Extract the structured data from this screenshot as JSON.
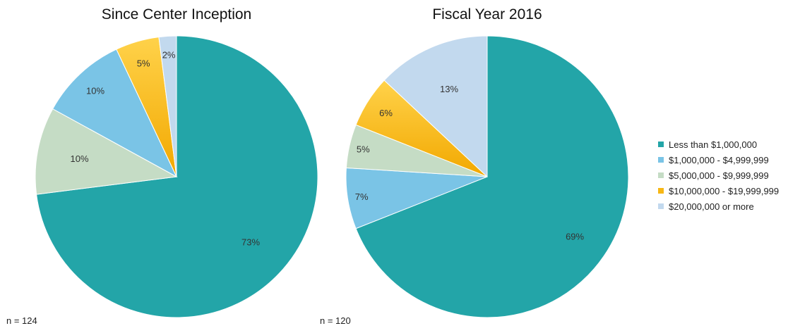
{
  "chart_data": [
    {
      "type": "pie",
      "title": "Since Center Inception",
      "note": "n = 124",
      "slices": [
        {
          "label": "Less than $1,000,000",
          "value": 73,
          "display": "73%"
        },
        {
          "label": "$5,000,000 - $9,999,999",
          "value": 10,
          "display": "10%"
        },
        {
          "label": "$1,000,000 - $4,999,999",
          "value": 10,
          "display": "10%"
        },
        {
          "label": "$10,000,000 - $19,999,999",
          "value": 5,
          "display": "5%"
        },
        {
          "label": "$20,000,000 or more",
          "value": 2,
          "display": "2%"
        }
      ]
    },
    {
      "type": "pie",
      "title": "Fiscal Year 2016",
      "note": "n = 120",
      "slices": [
        {
          "label": "Less than $1,000,000",
          "value": 69,
          "display": "69%"
        },
        {
          "label": "$1,000,000 - $4,999,999",
          "value": 7,
          "display": "7%"
        },
        {
          "label": "$5,000,000 - $9,999,999",
          "value": 5,
          "display": "5%"
        },
        {
          "label": "$10,000,000 - $19,999,999",
          "value": 6,
          "display": "6%"
        },
        {
          "label": "$20,000,000 or more",
          "value": 13,
          "display": "13%"
        }
      ]
    }
  ],
  "legend": [
    {
      "label": "Less than $1,000,000",
      "color": "#23A5A8"
    },
    {
      "label": "$1,000,000 - $4,999,999",
      "color": "#7AC4E6"
    },
    {
      "label": "$5,000,000 - $9,999,999",
      "color": "#C5DCC5"
    },
    {
      "label": "$10,000,000 - $19,999,999",
      "color": "#F7B715"
    },
    {
      "label": "$20,000,000 or more",
      "color": "#C2D9EE"
    }
  ],
  "colors": {
    "Less than $1,000,000": "#23A5A8",
    "$1,000,000 - $4,999,999": "#7AC4E6",
    "$5,000,000 - $9,999,999": "#C5DCC5",
    "$10,000,000 - $19,999,999": "#F7B715",
    "$20,000,000 or more": "#C2D9EE"
  }
}
